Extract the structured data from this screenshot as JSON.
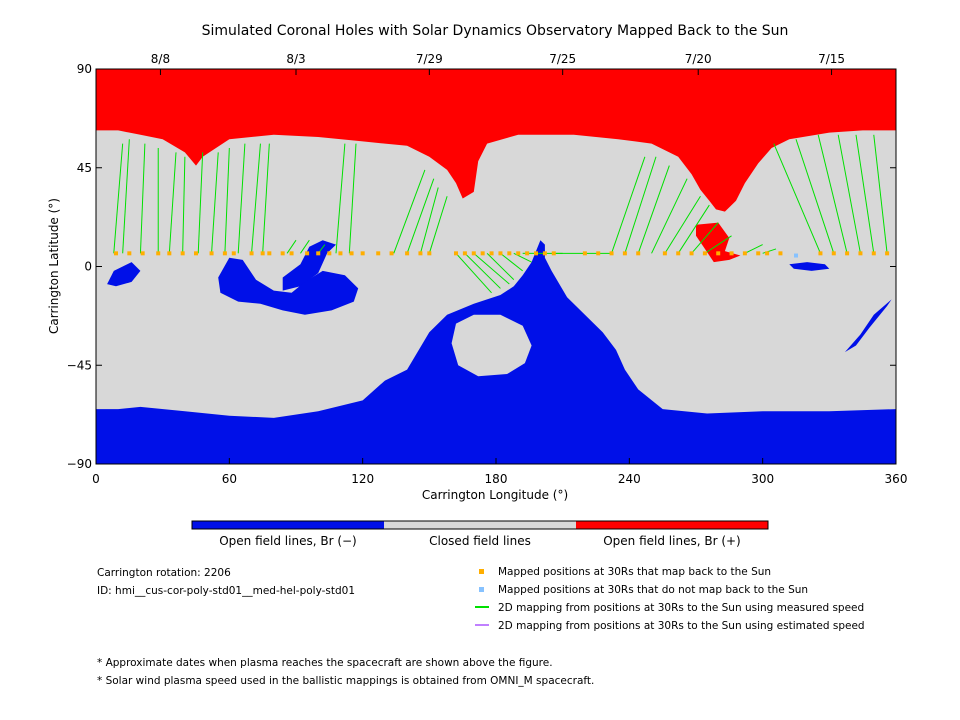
{
  "chart_data": {
    "type": "map",
    "title": "Simulated Coronal Holes with Solar Dynamics Observatory Mapped Back to the Sun",
    "xlabel": "Carrington Longitude (°)",
    "ylabel": "Carrington Latitude (°)",
    "xlim": [
      0,
      360
    ],
    "ylim": [
      -90,
      90
    ],
    "x_ticks": [
      0,
      60,
      120,
      180,
      240,
      300,
      360
    ],
    "y_ticks": [
      -90,
      -45,
      0,
      45,
      90
    ],
    "top_date_ticks": [
      {
        "label": "8/8",
        "lon": 29
      },
      {
        "label": "8/3",
        "lon": 90
      },
      {
        "label": "7/29",
        "lon": 150
      },
      {
        "label": "7/25",
        "lon": 210
      },
      {
        "label": "7/20",
        "lon": 271
      },
      {
        "label": "7/15",
        "lon": 331
      }
    ],
    "regions": {
      "north_pole_positive_boundary": [
        [
          0,
          62
        ],
        [
          10,
          62
        ],
        [
          20,
          60
        ],
        [
          30,
          58
        ],
        [
          40,
          52
        ],
        [
          45,
          46
        ],
        [
          48,
          50
        ],
        [
          60,
          58
        ],
        [
          80,
          60
        ],
        [
          100,
          59
        ],
        [
          120,
          57
        ],
        [
          140,
          55
        ],
        [
          150,
          50
        ],
        [
          158,
          44
        ],
        [
          162,
          38
        ],
        [
          165,
          31
        ],
        [
          170,
          34
        ],
        [
          172,
          48
        ],
        [
          176,
          56
        ],
        [
          190,
          60
        ],
        [
          215,
          60
        ],
        [
          235,
          58
        ],
        [
          250,
          56
        ],
        [
          262,
          50
        ],
        [
          268,
          42
        ],
        [
          272,
          35
        ],
        [
          276,
          30
        ],
        [
          279,
          26
        ],
        [
          283,
          25
        ],
        [
          288,
          30
        ],
        [
          292,
          38
        ],
        [
          298,
          47
        ],
        [
          304,
          54
        ],
        [
          312,
          58
        ],
        [
          330,
          61
        ],
        [
          345,
          62
        ],
        [
          360,
          62
        ]
      ],
      "north_tail_positive": [
        [
          270,
          19
        ],
        [
          280,
          20
        ],
        [
          285,
          13
        ],
        [
          283,
          7
        ],
        [
          290,
          5
        ],
        [
          285,
          3
        ],
        [
          278,
          2
        ],
        [
          274,
          8
        ],
        [
          270,
          14
        ]
      ],
      "south_pole_negative_boundary": [
        [
          0,
          -65
        ],
        [
          10,
          -65
        ],
        [
          20,
          -64
        ],
        [
          40,
          -66
        ],
        [
          60,
          -68
        ],
        [
          80,
          -69
        ],
        [
          100,
          -66
        ],
        [
          120,
          -61
        ],
        [
          130,
          -52
        ],
        [
          140,
          -47
        ],
        [
          150,
          -30
        ],
        [
          158,
          -22
        ],
        [
          170,
          -17
        ],
        [
          182,
          -13
        ],
        [
          188,
          -9
        ],
        [
          192,
          -4
        ],
        [
          196,
          2
        ],
        [
          198,
          7
        ],
        [
          200,
          12
        ],
        [
          202,
          10
        ],
        [
          202,
          4
        ],
        [
          205,
          -2
        ],
        [
          212,
          -14
        ],
        [
          220,
          -22
        ],
        [
          228,
          -30
        ],
        [
          234,
          -38
        ],
        [
          238,
          -47
        ],
        [
          244,
          -56
        ],
        [
          255,
          -65
        ],
        [
          275,
          -67
        ],
        [
          300,
          -66
        ],
        [
          330,
          -66
        ],
        [
          360,
          -65
        ]
      ],
      "south_hole_closed_island": [
        [
          160,
          -35
        ],
        [
          162,
          -26
        ],
        [
          170,
          -22
        ],
        [
          182,
          -22
        ],
        [
          192,
          -27
        ],
        [
          196,
          -36
        ],
        [
          193,
          -44
        ],
        [
          185,
          -49
        ],
        [
          172,
          -50
        ],
        [
          163,
          -45
        ]
      ],
      "mid_latitude_negative_1": [
        [
          84,
          -11
        ],
        [
          92,
          -9
        ],
        [
          100,
          -3
        ],
        [
          104,
          6
        ],
        [
          108,
          10
        ],
        [
          102,
          12
        ],
        [
          96,
          9
        ],
        [
          92,
          1
        ],
        [
          84,
          -5
        ]
      ],
      "mid_latitude_negative_2": [
        [
          55,
          -5
        ],
        [
          60,
          4
        ],
        [
          66,
          3
        ],
        [
          72,
          -6
        ],
        [
          80,
          -11
        ],
        [
          88,
          -12
        ],
        [
          94,
          -7
        ],
        [
          102,
          -2
        ],
        [
          112,
          -4
        ],
        [
          118,
          -10
        ],
        [
          116,
          -16
        ],
        [
          106,
          -20
        ],
        [
          94,
          -22
        ],
        [
          84,
          -20
        ],
        [
          74,
          -17
        ],
        [
          64,
          -16
        ],
        [
          56,
          -12
        ]
      ],
      "equatorial_negative_left": [
        [
          5,
          -8
        ],
        [
          8,
          -2
        ],
        [
          16,
          2
        ],
        [
          20,
          -2
        ],
        [
          16,
          -7
        ],
        [
          9,
          -9
        ]
      ],
      "equatorial_negative_right": [
        [
          312,
          1
        ],
        [
          320,
          2
        ],
        [
          328,
          1
        ],
        [
          330,
          -1
        ],
        [
          322,
          -2
        ],
        [
          314,
          -1
        ]
      ],
      "southeast_negative_streak": [
        [
          337,
          -39
        ],
        [
          342,
          -36
        ],
        [
          348,
          -28
        ],
        [
          356,
          -18
        ],
        [
          358,
          -15
        ],
        [
          350,
          -22
        ],
        [
          344,
          -31
        ]
      ]
    },
    "mapped_positions_map_back": [
      [
        9,
        6
      ],
      [
        15,
        6
      ],
      [
        21,
        6
      ],
      [
        28,
        6
      ],
      [
        33,
        6
      ],
      [
        39,
        6
      ],
      [
        45,
        6
      ],
      [
        52,
        6
      ],
      [
        58,
        6
      ],
      [
        62,
        6
      ],
      [
        70,
        6
      ],
      [
        75,
        6
      ],
      [
        78,
        6
      ],
      [
        84,
        6
      ],
      [
        88,
        6
      ],
      [
        95,
        6
      ],
      [
        100,
        6
      ],
      [
        105,
        6
      ],
      [
        110,
        6
      ],
      [
        115,
        6
      ],
      [
        120,
        6
      ],
      [
        127,
        6
      ],
      [
        133,
        6
      ],
      [
        140,
        6
      ],
      [
        146,
        6
      ],
      [
        150,
        6
      ],
      [
        162,
        6
      ],
      [
        166,
        6
      ],
      [
        170,
        6
      ],
      [
        174,
        6
      ],
      [
        178,
        6
      ],
      [
        182,
        6
      ],
      [
        186,
        6
      ],
      [
        190,
        6
      ],
      [
        194,
        6
      ],
      [
        198,
        6
      ],
      [
        202,
        6
      ],
      [
        206,
        6
      ],
      [
        220,
        6
      ],
      [
        226,
        6
      ],
      [
        232,
        6
      ],
      [
        238,
        6
      ],
      [
        244,
        6
      ],
      [
        256,
        6
      ],
      [
        262,
        6
      ],
      [
        268,
        6
      ],
      [
        274,
        6
      ],
      [
        280,
        6
      ],
      [
        286,
        6
      ],
      [
        292,
        6
      ],
      [
        298,
        6
      ],
      [
        302,
        6
      ],
      [
        308,
        6
      ],
      [
        326,
        6
      ],
      [
        332,
        6
      ],
      [
        338,
        6
      ],
      [
        344,
        6
      ],
      [
        350,
        6
      ],
      [
        356,
        6
      ]
    ],
    "mapped_positions_no_map_back": [
      [
        315,
        5
      ]
    ],
    "mapping_lines_measured": [
      [
        [
          8,
          6
        ],
        [
          12,
          56
        ]
      ],
      [
        [
          12,
          6
        ],
        [
          15,
          58
        ]
      ],
      [
        [
          20,
          6
        ],
        [
          22,
          56
        ]
      ],
      [
        [
          28,
          6
        ],
        [
          28,
          54
        ]
      ],
      [
        [
          33,
          6
        ],
        [
          36,
          52
        ]
      ],
      [
        [
          39,
          6
        ],
        [
          40,
          50
        ]
      ],
      [
        [
          46,
          6
        ],
        [
          48,
          52
        ]
      ],
      [
        [
          52,
          6
        ],
        [
          55,
          52
        ]
      ],
      [
        [
          58,
          6
        ],
        [
          60,
          54
        ]
      ],
      [
        [
          64,
          6
        ],
        [
          67,
          56
        ]
      ],
      [
        [
          70,
          6
        ],
        [
          74,
          56
        ]
      ],
      [
        [
          75,
          6
        ],
        [
          78,
          56
        ]
      ],
      [
        [
          86,
          6
        ],
        [
          90,
          12
        ]
      ],
      [
        [
          92,
          6
        ],
        [
          96,
          12
        ]
      ],
      [
        [
          100,
          6
        ],
        [
          103,
          10
        ]
      ],
      [
        [
          108,
          6
        ],
        [
          112,
          56
        ]
      ],
      [
        [
          114,
          6
        ],
        [
          117,
          56
        ]
      ],
      [
        [
          134,
          6
        ],
        [
          148,
          44
        ]
      ],
      [
        [
          140,
          6
        ],
        [
          152,
          40
        ]
      ],
      [
        [
          146,
          6
        ],
        [
          154,
          36
        ]
      ],
      [
        [
          150,
          6
        ],
        [
          158,
          32
        ]
      ],
      [
        [
          162,
          6
        ],
        [
          178,
          -12
        ]
      ],
      [
        [
          166,
          6
        ],
        [
          182,
          -10
        ]
      ],
      [
        [
          170,
          6
        ],
        [
          186,
          -8
        ]
      ],
      [
        [
          176,
          6
        ],
        [
          188,
          -6
        ]
      ],
      [
        [
          182,
          6
        ],
        [
          192,
          -2
        ]
      ],
      [
        [
          188,
          6
        ],
        [
          196,
          2
        ]
      ],
      [
        [
          192,
          6
        ],
        [
          198,
          6
        ]
      ],
      [
        [
          198,
          6
        ],
        [
          210,
          6
        ]
      ],
      [
        [
          206,
          6
        ],
        [
          232,
          6
        ]
      ],
      [
        [
          232,
          6
        ],
        [
          247,
          50
        ]
      ],
      [
        [
          238,
          6
        ],
        [
          252,
          50
        ]
      ],
      [
        [
          244,
          6
        ],
        [
          258,
          46
        ]
      ],
      [
        [
          250,
          6
        ],
        [
          266,
          40
        ]
      ],
      [
        [
          256,
          6
        ],
        [
          272,
          32
        ]
      ],
      [
        [
          262,
          6
        ],
        [
          276,
          28
        ]
      ],
      [
        [
          268,
          6
        ],
        [
          280,
          20
        ]
      ],
      [
        [
          274,
          6
        ],
        [
          286,
          14
        ]
      ],
      [
        [
          292,
          6
        ],
        [
          300,
          10
        ]
      ],
      [
        [
          300,
          6
        ],
        [
          306,
          8
        ]
      ],
      [
        [
          326,
          6
        ],
        [
          305,
          56
        ]
      ],
      [
        [
          332,
          6
        ],
        [
          315,
          58
        ]
      ],
      [
        [
          338,
          6
        ],
        [
          325,
          60
        ]
      ],
      [
        [
          344,
          6
        ],
        [
          334,
          60
        ]
      ],
      [
        [
          350,
          6
        ],
        [
          342,
          60
        ]
      ],
      [
        [
          356,
          6
        ],
        [
          350,
          60
        ]
      ]
    ],
    "bottom_legend": {
      "colorbar": [
        {
          "label": "Open field lines, Br (−)",
          "color": "#0010e8"
        },
        {
          "label": "Closed field lines",
          "color": "#d8d8d8"
        },
        {
          "label": "Open field lines, Br (+)",
          "color": "#ff0000"
        }
      ]
    },
    "info": {
      "rotation": "Carrington rotation: 2206",
      "id": "ID: hmi__cus-cor-poly-std01__med-hel-poly-std01"
    },
    "legend": [
      {
        "label": "Mapped positions at 30Rs that map back to the Sun",
        "marker": "square",
        "color": "#ffae00"
      },
      {
        "label": "Mapped positions at 30Rs that do not map back to the Sun",
        "marker": "square",
        "color": "#87c2ff"
      },
      {
        "label": "2D mapping from positions at 30Rs to the Sun using measured speed",
        "marker": "line",
        "color": "#00e000"
      },
      {
        "label": "2D mapping from positions at 30Rs to the Sun using estimated speed",
        "marker": "line",
        "color": "#c080ff"
      }
    ],
    "footnotes": [
      "* Approximate dates when plasma reaches the spacecraft are shown above the figure.",
      "* Solar wind plasma speed used in the ballistic mappings is obtained from OMNI_M spacecraft."
    ]
  }
}
